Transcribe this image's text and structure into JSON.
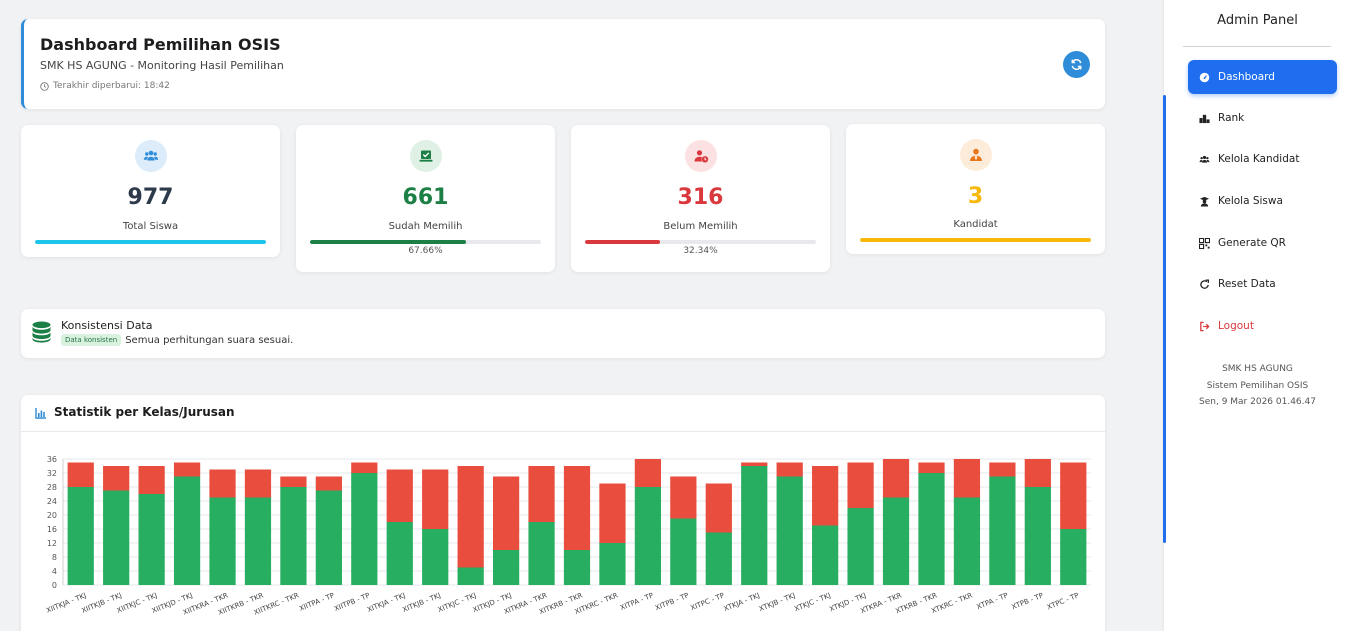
{
  "header": {
    "title": "Dashboard Pemilihan OSIS",
    "subtitle": "SMK HS AGUNG - Monitoring Hasil Pemilihan",
    "updated": "Terakhir diperbarui: 18:42"
  },
  "stats": [
    {
      "value": "977",
      "label": "Total Siswa",
      "color": "#2c3a4b",
      "icon": "users-icon",
      "progress": 100,
      "bar_color": "#1cc3ea",
      "pct": ""
    },
    {
      "value": "661",
      "label": "Sudah Memilih",
      "color": "#1c7f45",
      "icon": "check-box-icon",
      "progress": 67.66,
      "bar_color": "#1c7f45",
      "pct": "67.66%"
    },
    {
      "value": "316",
      "label": "Belum Memilih",
      "color": "#d9383d",
      "icon": "user-clock-icon",
      "progress": 32.34,
      "bar_color": "#d9383d",
      "pct": "32.34%"
    },
    {
      "value": "3",
      "label": "Kandidat",
      "color": "#f5b80b",
      "icon": "user-tie-icon",
      "progress": 100,
      "bar_color": "#f5b80b",
      "pct": ""
    }
  ],
  "consistency": {
    "title": "Konsistensi Data",
    "badge": "Data konsisten",
    "message": "Semua perhitungan suara sesuai."
  },
  "chart_section": {
    "title": "Statistik per Kelas/Jurusan"
  },
  "chart_data": {
    "type": "bar",
    "stacked": true,
    "ylim": [
      0,
      36
    ],
    "yticks": [
      0,
      4,
      8,
      12,
      16,
      20,
      24,
      28,
      32,
      36
    ],
    "grid": true,
    "categories": [
      "XIITKJA - TKJ",
      "XIITKJB - TKJ",
      "XIITKJC - TKJ",
      "XIITKJD - TKJ",
      "XIITKRA - TKR",
      "XIITKRB - TKR",
      "XIITKRC - TKR",
      "XIITPA - TP",
      "XIITPB - TP",
      "XITKJA - TKJ",
      "XITKJB - TKJ",
      "XITKJC - TKJ",
      "XITKJD - TKJ",
      "XITKRA - TKR",
      "XITKRB - TKR",
      "XITKRC - TKR",
      "XITPA - TP",
      "XITPB - TP",
      "XITPC - TP",
      "XTKJA - TKJ",
      "XTKJB - TKJ",
      "XTKJC - TKJ",
      "XTKJD - TKJ",
      "XTKRA - TKR",
      "XTKRB - TKR",
      "XTKRC - TKR",
      "XTPA - TP",
      "XTPB - TP",
      "XTPC - TP"
    ],
    "series": [
      {
        "color": "#28ae60",
        "values": [
          28,
          27,
          26,
          31,
          25,
          25,
          28,
          27,
          32,
          18,
          16,
          5,
          10,
          18,
          10,
          12,
          28,
          19,
          15,
          34,
          31,
          17,
          22,
          25,
          32,
          25,
          31,
          28,
          16
        ]
      },
      {
        "color": "#e84d3d",
        "values": [
          7,
          7,
          8,
          4,
          8,
          8,
          3,
          4,
          3,
          15,
          17,
          29,
          21,
          16,
          24,
          17,
          8,
          12,
          14,
          1,
          4,
          17,
          13,
          11,
          3,
          11,
          4,
          8,
          19
        ]
      }
    ]
  },
  "sidebar": {
    "title": "Admin Panel",
    "items": [
      {
        "label": "Dashboard",
        "icon": "gauge-icon",
        "active": true
      },
      {
        "label": "Rank",
        "icon": "podium-icon"
      },
      {
        "label": "Kelola Kandidat",
        "icon": "users-icon"
      },
      {
        "label": "Kelola Siswa",
        "icon": "graduate-icon"
      },
      {
        "label": "Generate QR",
        "icon": "qr-icon"
      },
      {
        "label": "Reset Data",
        "icon": "redo-icon"
      },
      {
        "label": "Logout",
        "icon": "logout-icon",
        "logout": true
      }
    ],
    "footer": [
      "SMK HS AGUNG",
      "Sistem Pemilihan OSIS",
      "Sen, 9 Mar 2026 01.46.47"
    ]
  }
}
